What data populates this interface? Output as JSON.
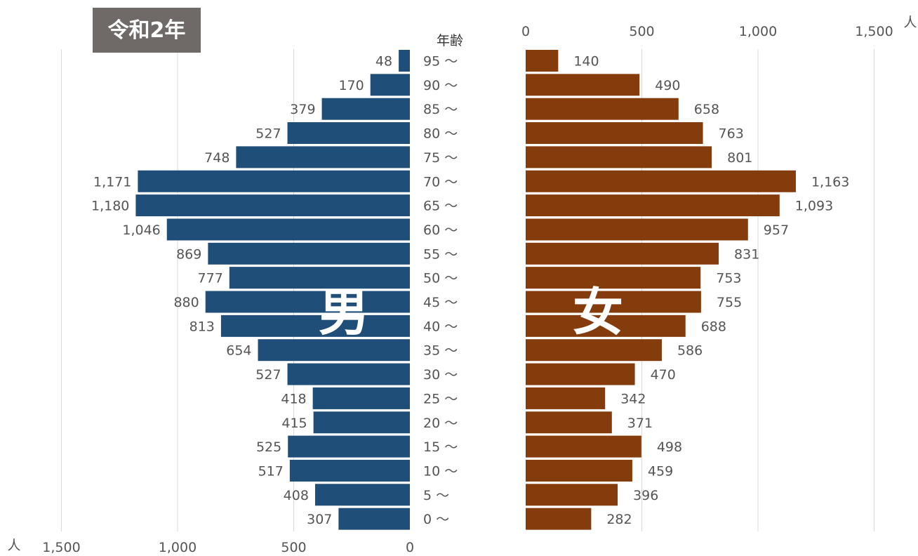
{
  "era_label": "令和2年",
  "age_header": "年齢",
  "unit": "人",
  "male_label": "男",
  "female_label": "女",
  "colors": {
    "male": "#1f4e79",
    "female": "#843c0c"
  },
  "chart_data": {
    "type": "bar",
    "orientation": "horizontal-population-pyramid",
    "categories": [
      "95 ～",
      "90 ～",
      "85 ～",
      "80 ～",
      "75 ～",
      "70 ～",
      "65 ～",
      "60 ～",
      "55 ～",
      "50 ～",
      "45 ～",
      "40 ～",
      "35 ～",
      "30 ～",
      "25 ～",
      "20 ～",
      "15 ～",
      "10 ～",
      "5 ～",
      "0 ～"
    ],
    "series": [
      {
        "name": "男",
        "values": [
          48,
          170,
          379,
          527,
          748,
          1171,
          1180,
          1046,
          869,
          777,
          880,
          813,
          654,
          527,
          418,
          415,
          525,
          517,
          408,
          307
        ],
        "labels": [
          "48",
          "170",
          "379",
          "527",
          "748",
          "1,171",
          "1,180",
          "1,046",
          "869",
          "777",
          "880",
          "813",
          "654",
          "527",
          "418",
          "415",
          "525",
          "517",
          "408",
          "307"
        ]
      },
      {
        "name": "女",
        "values": [
          140,
          490,
          658,
          763,
          801,
          1163,
          1093,
          957,
          831,
          753,
          755,
          688,
          586,
          470,
          342,
          371,
          498,
          459,
          396,
          282
        ],
        "labels": [
          "140",
          "490",
          "658",
          "763",
          "801",
          "1,163",
          "1,093",
          "957",
          "831",
          "753",
          "755",
          "688",
          "586",
          "470",
          "342",
          "371",
          "498",
          "459",
          "396",
          "282"
        ]
      }
    ],
    "male_axis": {
      "ticks": [
        "1,500",
        "1,000",
        "500",
        "0"
      ],
      "tick_values": [
        1500,
        1000,
        500,
        0
      ],
      "range": [
        0,
        1500
      ]
    },
    "female_axis": {
      "ticks": [
        "0",
        "500",
        "1,000",
        "1,500"
      ],
      "tick_values": [
        0,
        500,
        1000,
        1500
      ],
      "range": [
        0,
        1500
      ]
    },
    "grid": true
  }
}
